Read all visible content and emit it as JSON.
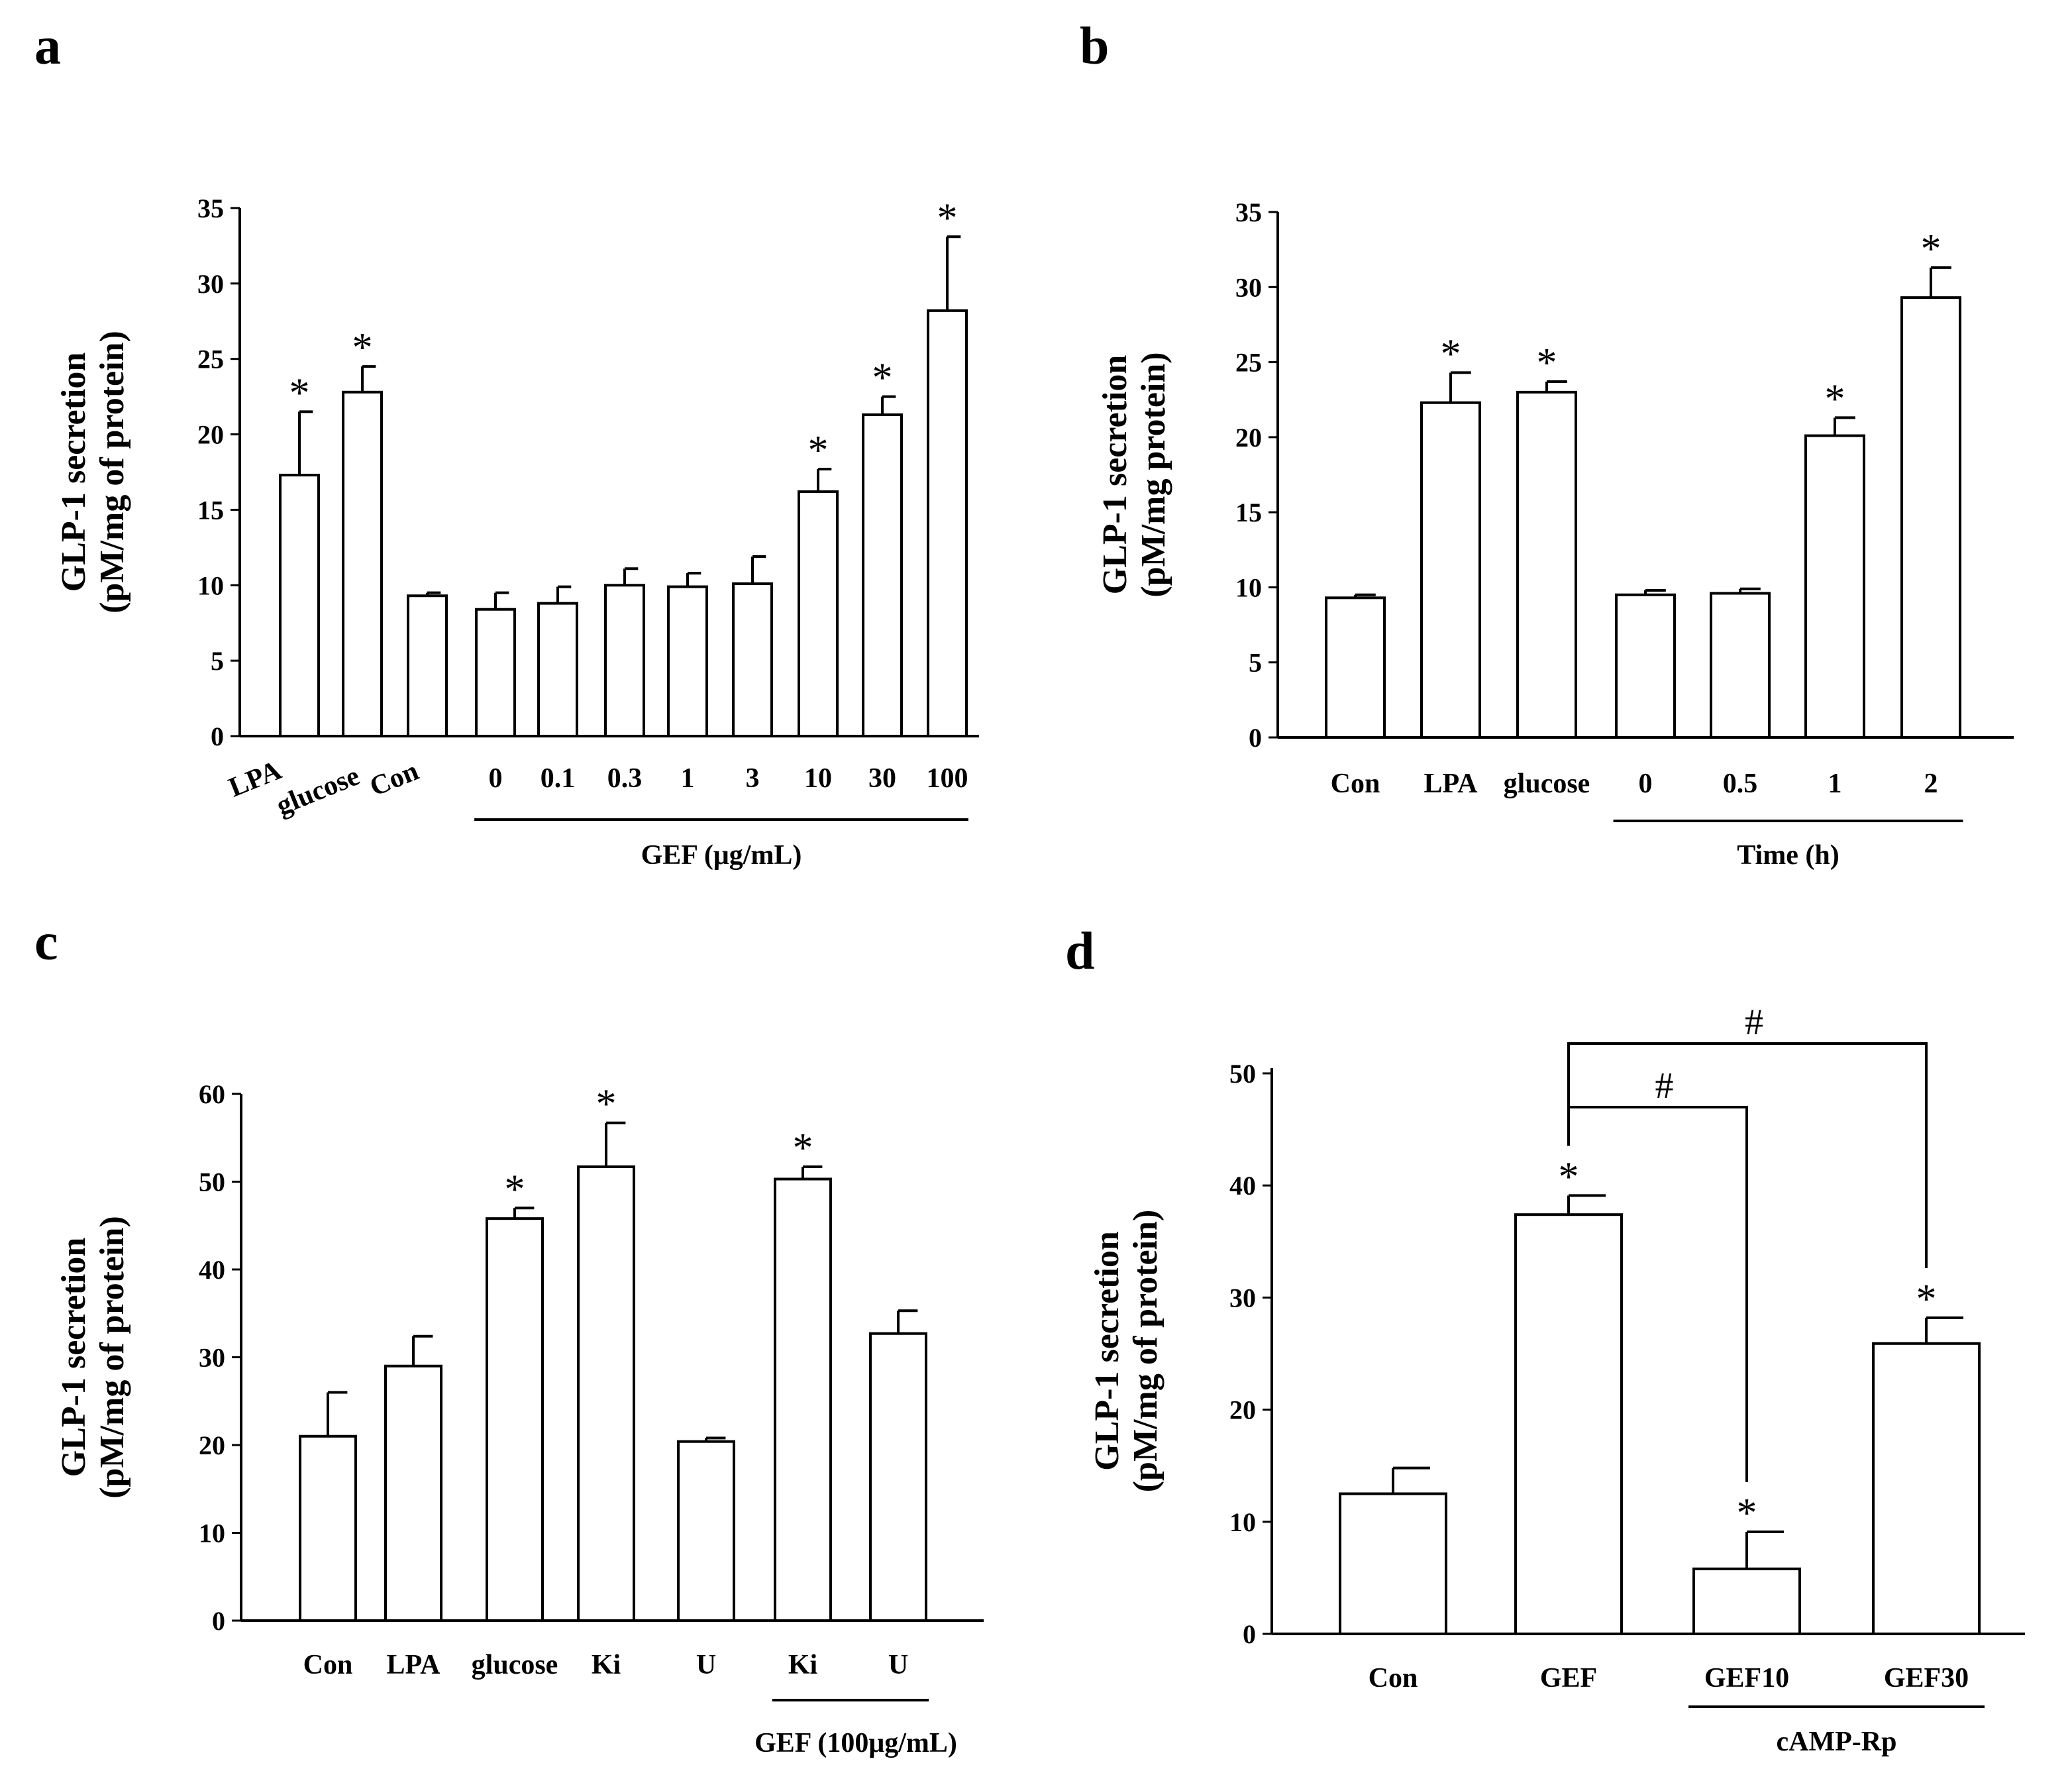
{
  "chart_data": [
    {
      "type": "bar",
      "panel": "a",
      "ylabel": [
        "GLP-1 secretion",
        "(pM/mg of protein)"
      ],
      "ylim": [
        0,
        35
      ],
      "yticks": [
        0,
        5,
        10,
        15,
        20,
        25,
        30,
        35
      ],
      "categories": [
        "LPA",
        "glucose",
        "Con",
        "0",
        "0.1",
        "0.3",
        "1",
        "3",
        "10",
        "30",
        "100"
      ],
      "values": [
        17.3,
        22.8,
        9.3,
        8.4,
        8.8,
        10.0,
        9.9,
        10.1,
        16.2,
        21.3,
        28.2
      ],
      "errors": [
        4.2,
        1.7,
        0.2,
        1.1,
        1.1,
        1.1,
        0.9,
        1.8,
        1.5,
        1.2,
        4.9
      ],
      "significant": [
        true,
        true,
        false,
        false,
        false,
        false,
        false,
        false,
        true,
        true,
        true
      ],
      "star": "*",
      "rotated_labels": [
        0,
        1,
        2
      ],
      "groups": [
        {
          "label": "GEF (μg/mL)",
          "from": 3,
          "to": 10
        }
      ]
    },
    {
      "type": "bar",
      "panel": "b",
      "ylabel": [
        "GLP-1 secretion",
        "(pM/mg protein)"
      ],
      "ylim": [
        0,
        35
      ],
      "yticks": [
        0,
        5,
        10,
        15,
        20,
        25,
        30,
        35
      ],
      "categories": [
        "Con",
        "LPA",
        "glucose",
        "0",
        "0.5",
        "1",
        "2"
      ],
      "values": [
        9.3,
        22.3,
        23.0,
        9.5,
        9.6,
        20.1,
        29.3
      ],
      "errors": [
        0.2,
        2.0,
        0.7,
        0.3,
        0.3,
        1.2,
        2.0
      ],
      "significant": [
        false,
        true,
        true,
        false,
        false,
        true,
        true
      ],
      "star": "*",
      "groups": [
        {
          "label": "Time (h)",
          "from": 3,
          "to": 6
        }
      ]
    },
    {
      "type": "bar",
      "panel": "c",
      "ylabel": [
        "GLP-1 secretion",
        "(pM/mg of protein)"
      ],
      "ylim": [
        0,
        60
      ],
      "yticks": [
        0,
        10,
        20,
        30,
        40,
        50,
        60
      ],
      "categories": [
        "Con",
        "LPA",
        "glucose",
        "Ki",
        "U",
        "Ki",
        "U"
      ],
      "values": [
        21.0,
        29.0,
        45.8,
        51.7,
        20.4,
        50.3,
        32.7
      ],
      "errors": [
        5.0,
        3.4,
        1.2,
        5.0,
        0.4,
        1.4,
        2.6
      ],
      "significant": [
        false,
        false,
        true,
        true,
        false,
        true,
        false
      ],
      "star": "*",
      "groups": [
        {
          "label": "GEF (100μg/mL)",
          "from": 5,
          "to": 6
        }
      ]
    },
    {
      "type": "bar",
      "panel": "d",
      "ylabel": [
        "GLP-1 secretion",
        "(pM/mg of protein)"
      ],
      "ylim": [
        0,
        50
      ],
      "yticks": [
        0,
        10,
        20,
        30,
        40,
        50
      ],
      "categories": [
        "Con",
        "GEF",
        "GEF10",
        "GEF30"
      ],
      "values": [
        12.5,
        37.4,
        5.8,
        25.9
      ],
      "errors": [
        2.3,
        1.7,
        3.3,
        2.3
      ],
      "significant": [
        false,
        true,
        true,
        true
      ],
      "star": "*",
      "groups": [
        {
          "label": "cAMP-Rp",
          "from": 2,
          "to": 3
        }
      ],
      "comparisons": [
        {
          "from": 1,
          "to": 2,
          "label": "#"
        },
        {
          "from": 1,
          "to": 3,
          "label": "#"
        }
      ]
    }
  ]
}
